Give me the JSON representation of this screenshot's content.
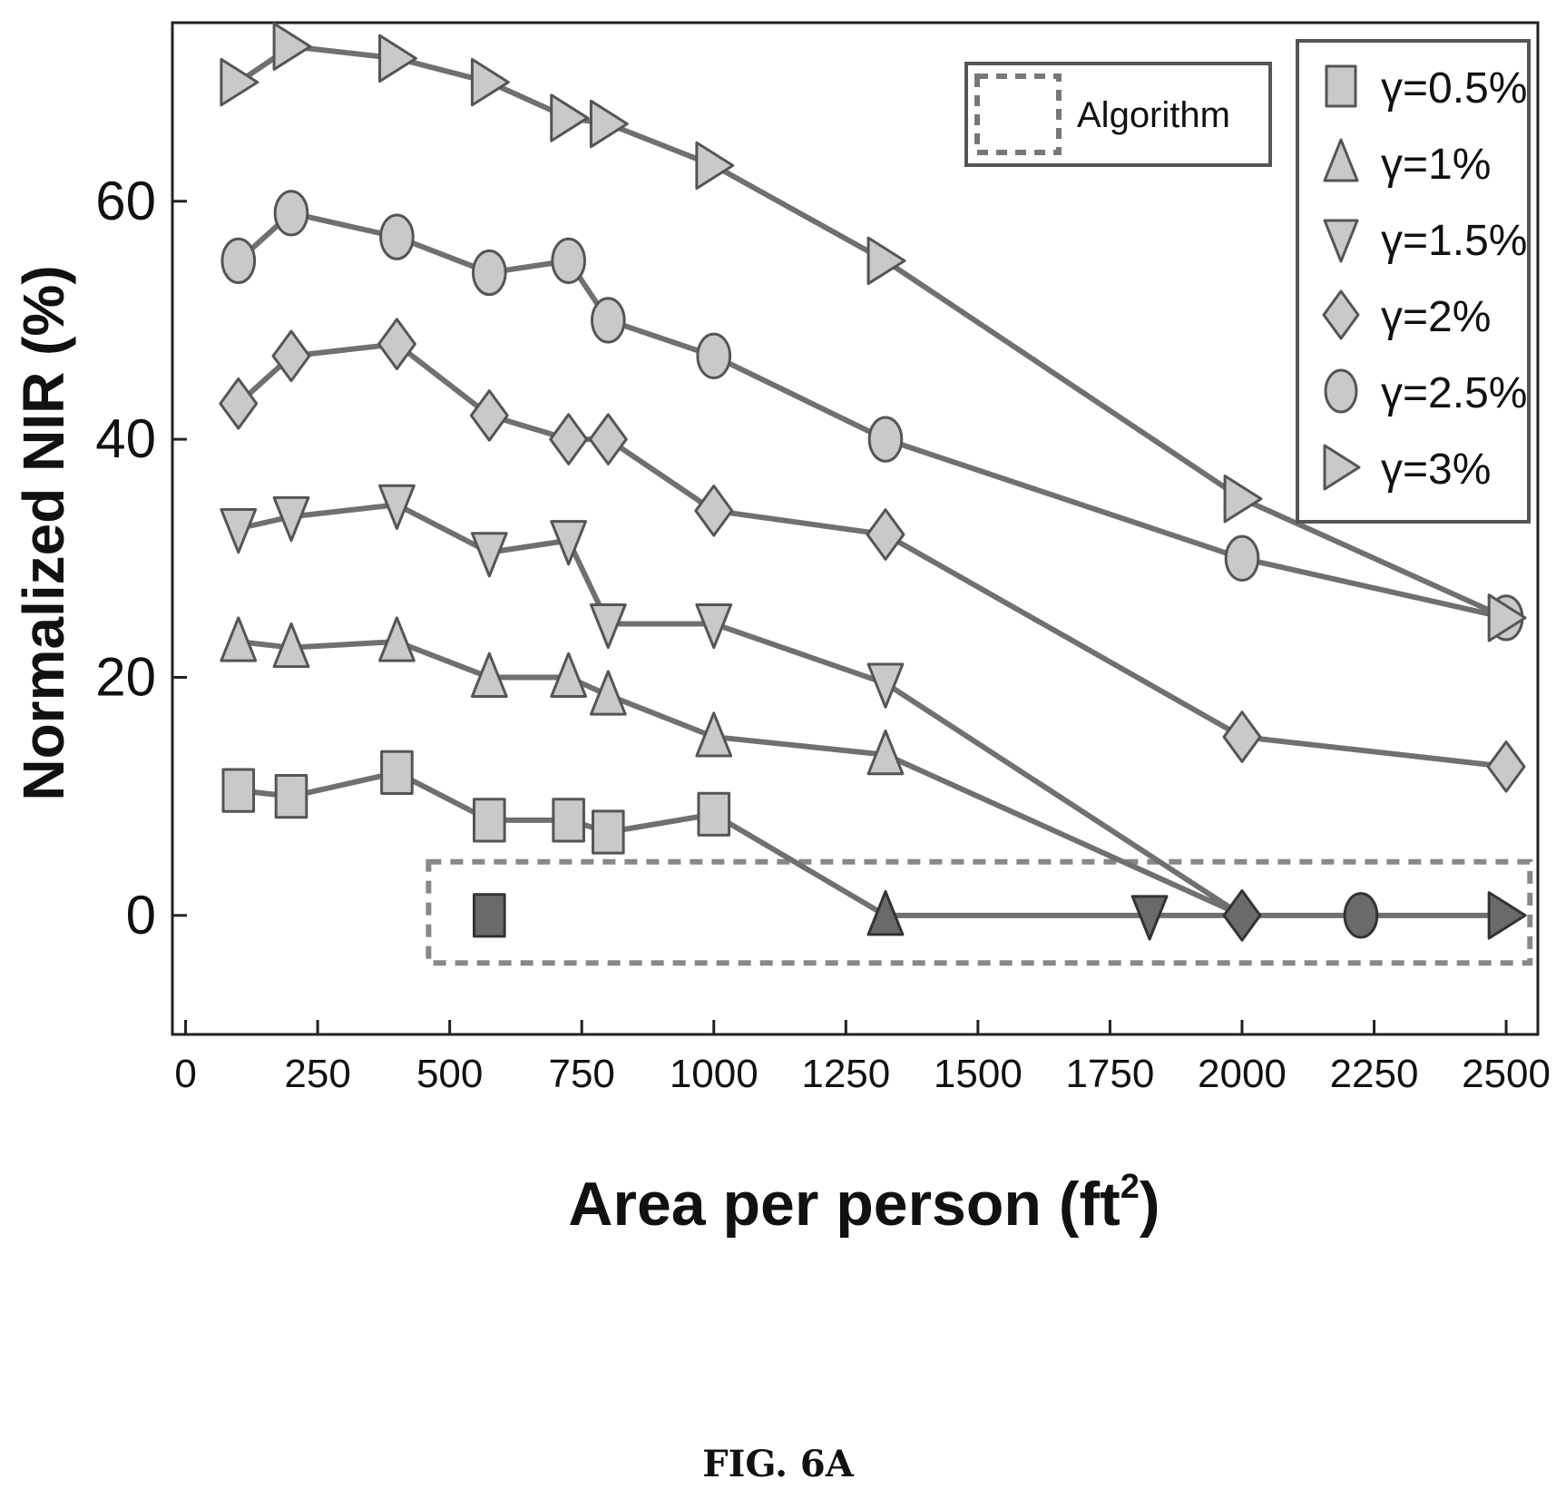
{
  "chart_data": {
    "type": "line",
    "xlabel": "Area per person (ft",
    "xlabel_sup": "2",
    "xlabel_close": ")",
    "ylabel": "Normalized NIR (%)",
    "xlim": [
      -25,
      2560
    ],
    "ylim": [
      -10,
      75
    ],
    "xticks": [
      0,
      250,
      500,
      750,
      1000,
      1250,
      1500,
      1750,
      2000,
      2250,
      2500
    ],
    "yticks": [
      0,
      20,
      40,
      60
    ],
    "legend_position": "top-right",
    "series": [
      {
        "name": "γ=0.5%",
        "marker": "square",
        "points": [
          [
            100,
            10.5
          ],
          [
            200,
            10
          ],
          [
            400,
            12
          ],
          [
            575,
            8
          ],
          [
            725,
            8
          ],
          [
            800,
            7
          ],
          [
            1000,
            8.5
          ],
          [
            1325,
            0
          ]
        ]
      },
      {
        "name": "γ=1%",
        "marker": "triangle-up",
        "points": [
          [
            100,
            23
          ],
          [
            200,
            22.5
          ],
          [
            400,
            23
          ],
          [
            575,
            20
          ],
          [
            725,
            20
          ],
          [
            800,
            18.5
          ],
          [
            1000,
            15
          ],
          [
            1325,
            13.5
          ],
          [
            2000,
            0
          ]
        ]
      },
      {
        "name": "γ=1.5%",
        "marker": "triangle-down",
        "points": [
          [
            100,
            32.5
          ],
          [
            200,
            33.5
          ],
          [
            400,
            34.5
          ],
          [
            575,
            30.5
          ],
          [
            725,
            31.5
          ],
          [
            800,
            24.5
          ],
          [
            1000,
            24.5
          ],
          [
            1325,
            19.5
          ],
          [
            2000,
            0
          ]
        ]
      },
      {
        "name": "γ=2%",
        "marker": "diamond",
        "points": [
          [
            100,
            43
          ],
          [
            200,
            47
          ],
          [
            400,
            48
          ],
          [
            575,
            42
          ],
          [
            725,
            40
          ],
          [
            800,
            40
          ],
          [
            1000,
            34
          ],
          [
            1325,
            32
          ],
          [
            2000,
            15
          ],
          [
            2500,
            12.5
          ]
        ]
      },
      {
        "name": "γ=2.5%",
        "marker": "circle",
        "points": [
          [
            100,
            55
          ],
          [
            200,
            59
          ],
          [
            400,
            57
          ],
          [
            575,
            54
          ],
          [
            725,
            55
          ],
          [
            800,
            50
          ],
          [
            1000,
            47
          ],
          [
            1325,
            40
          ],
          [
            2000,
            30
          ],
          [
            2500,
            25
          ]
        ]
      },
      {
        "name": "γ=3%",
        "marker": "triangle-right",
        "points": [
          [
            100,
            70
          ],
          [
            200,
            73
          ],
          [
            400,
            72
          ],
          [
            575,
            70
          ],
          [
            725,
            67
          ],
          [
            800,
            66.5
          ],
          [
            1000,
            63
          ],
          [
            1325,
            55
          ],
          [
            2000,
            35
          ],
          [
            2500,
            25
          ]
        ]
      }
    ],
    "algorithm": {
      "name": "Algorithm",
      "points": [
        {
          "x": 575,
          "y": 0,
          "marker": "square"
        },
        {
          "x": 1325,
          "y": 0,
          "marker": "triangle-up"
        },
        {
          "x": 1825,
          "y": 0,
          "marker": "triangle-down"
        },
        {
          "x": 2000,
          "y": 0,
          "marker": "diamond"
        },
        {
          "x": 2225,
          "y": 0,
          "marker": "circle"
        },
        {
          "x": 2500,
          "y": 0,
          "marker": "triangle-right"
        }
      ]
    },
    "caption": "FIG. 6A"
  },
  "colors": {
    "line": "#707070",
    "marker_fill": "#c9c9c9",
    "marker_stroke": "#555555",
    "algorithm_fill": "#6a6a6a",
    "axis": "#222222",
    "text": "#111111"
  }
}
